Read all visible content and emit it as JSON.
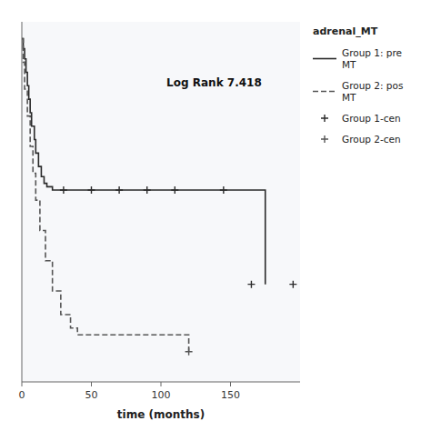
{
  "chart_data": {
    "type": "step",
    "title": "adrenal_MT",
    "annotation": "Log Rank 7.418",
    "xlabel": "time (months)",
    "xlim": [
      0,
      200
    ],
    "ylim": [
      -0.02,
      1.05
    ],
    "xticks": [
      0,
      50,
      100,
      150
    ],
    "yticks": [],
    "tick_labels": "x",
    "legend": "right",
    "series": [
      {
        "name": "Group 1: pre\nMT",
        "type": "step",
        "color": "#2a2a2a",
        "line_style": "solid",
        "x": [
          0,
          1,
          2,
          3,
          4,
          5,
          6,
          7,
          9,
          10,
          12,
          14,
          16,
          18,
          20,
          22,
          24,
          26,
          28,
          145,
          175
        ],
        "values": [
          1.0,
          0.97,
          0.94,
          0.9,
          0.86,
          0.82,
          0.78,
          0.74,
          0.7,
          0.66,
          0.62,
          0.59,
          0.57,
          0.56,
          0.56,
          0.55,
          0.55,
          0.55,
          0.55,
          0.55,
          0.27
        ]
      },
      {
        "name": "Group 2: pos\nMT",
        "type": "step",
        "color": "#555555",
        "line_style": "dashed",
        "x": [
          0,
          1,
          2,
          4,
          6,
          8,
          10,
          13,
          17,
          22,
          28,
          35,
          40,
          90,
          120
        ],
        "values": [
          1.0,
          0.93,
          0.85,
          0.77,
          0.68,
          0.6,
          0.52,
          0.43,
          0.34,
          0.25,
          0.18,
          0.14,
          0.12,
          0.12,
          0.07
        ]
      },
      {
        "name": "Group 1-cen",
        "type": "scatter",
        "color": "#2a2a2a",
        "marker": "plus",
        "x": [
          30,
          50,
          70,
          90,
          110,
          145,
          165,
          195
        ],
        "values": [
          0.55,
          0.55,
          0.55,
          0.55,
          0.55,
          0.55,
          0.27,
          0.27
        ]
      },
      {
        "name": "Group 2-cen",
        "type": "scatter",
        "color": "#555555",
        "marker": "plus",
        "x": [
          120
        ],
        "values": [
          0.07
        ]
      }
    ]
  }
}
